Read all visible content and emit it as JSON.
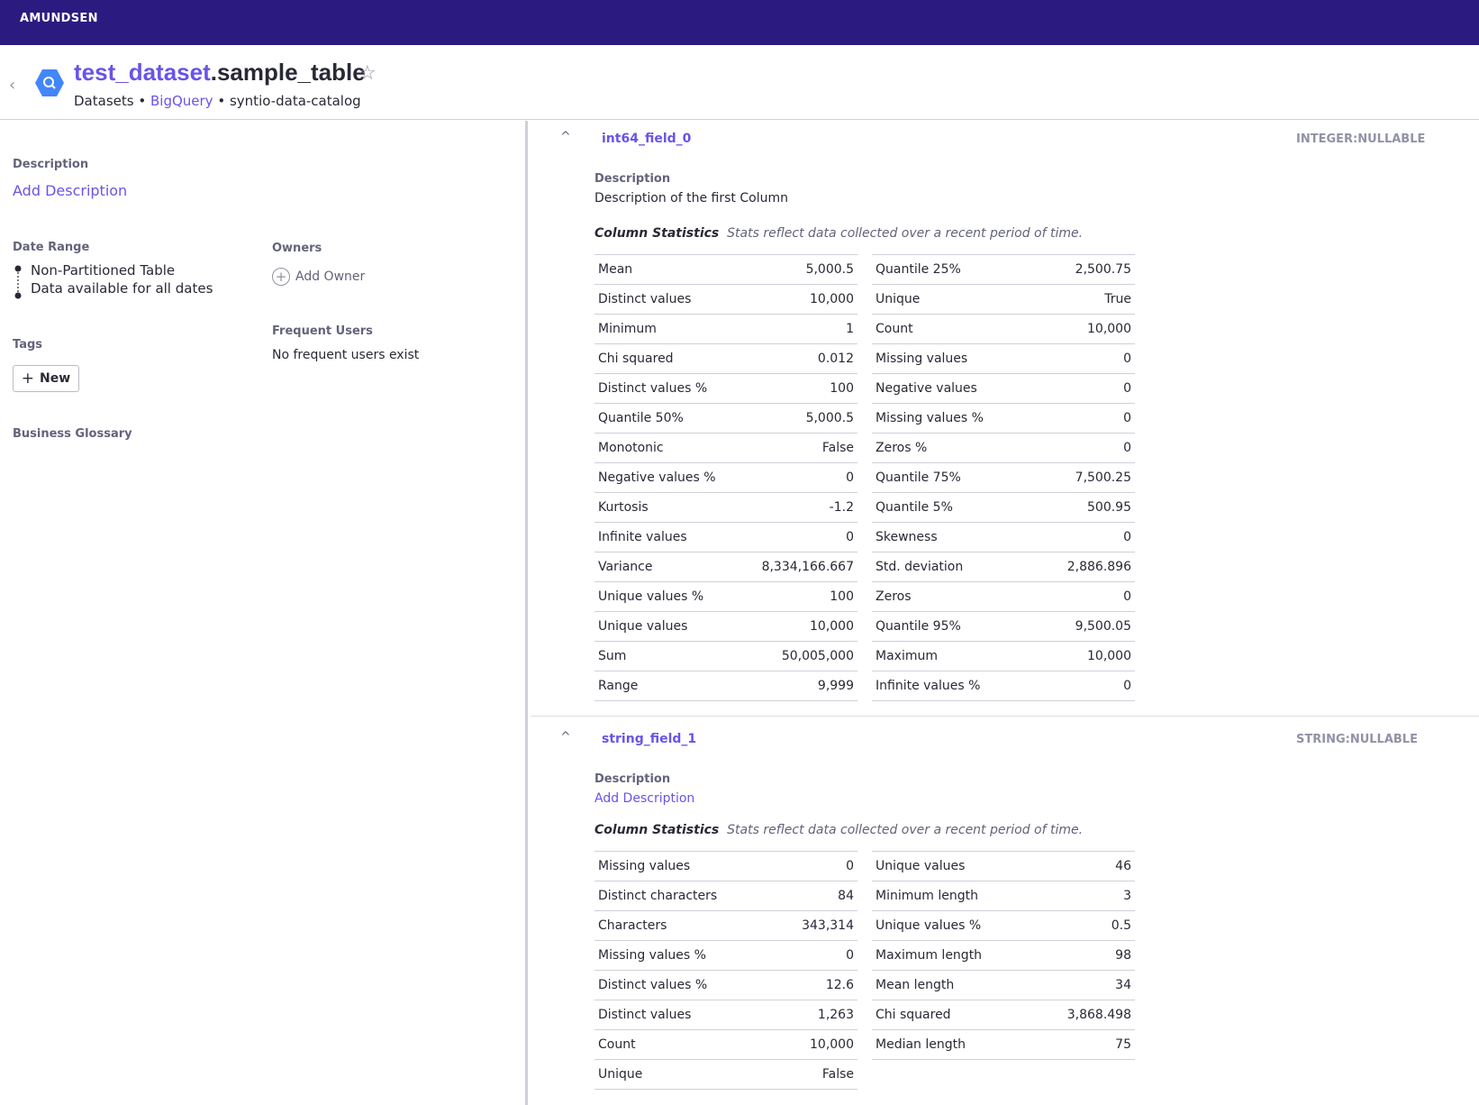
{
  "nav": {
    "brand": "AMUNDSEN"
  },
  "header": {
    "schema": "test_dataset",
    "table": ".sample_table",
    "breadcrumb_type": "Datasets",
    "sep1": "•",
    "breadcrumb_db": "BigQuery",
    "sep2": "•",
    "breadcrumb_cluster": "syntio-data-catalog",
    "icons": {
      "back": "chevron-left-icon",
      "db": "bigquery-icon",
      "bookmark": "star-icon"
    }
  },
  "left": {
    "description_label": "Description",
    "add_description": "Add Description",
    "date_range_label": "Date Range",
    "date_range_line1": "Non-Partitioned Table",
    "date_range_line2": "Data available for all dates",
    "tags_label": "Tags",
    "new_tag_icon": "+",
    "new_tag": "New",
    "glossary_label": "Business Glossary",
    "owners_label": "Owners",
    "add_owner_icon": "+",
    "add_owner": "Add Owner",
    "frequent_users_label": "Frequent Users",
    "frequent_users_empty": "No frequent users exist"
  },
  "columns": [
    {
      "name": "int64_field_0",
      "type": "INTEGER:NULLABLE",
      "chevron": "^",
      "description_label": "Description",
      "description": "Description of the first Column",
      "stats_title": "Column Statistics",
      "stats_note": "Stats reflect data collected over a recent period of time.",
      "stats_left": [
        {
          "label": "Mean",
          "value": "5,000.5"
        },
        {
          "label": "Distinct values",
          "value": "10,000"
        },
        {
          "label": "Minimum",
          "value": "1"
        },
        {
          "label": "Chi squared",
          "value": "0.012"
        },
        {
          "label": "Distinct values %",
          "value": "100"
        },
        {
          "label": "Quantile 50%",
          "value": "5,000.5"
        },
        {
          "label": "Monotonic",
          "value": "False"
        },
        {
          "label": "Negative values %",
          "value": "0"
        },
        {
          "label": "Kurtosis",
          "value": "-1.2"
        },
        {
          "label": "Infinite values",
          "value": "0"
        },
        {
          "label": "Variance",
          "value": "8,334,166.667"
        },
        {
          "label": "Unique values %",
          "value": "100"
        },
        {
          "label": "Unique values",
          "value": "10,000"
        },
        {
          "label": "Sum",
          "value": "50,005,000"
        },
        {
          "label": "Range",
          "value": "9,999"
        }
      ],
      "stats_right": [
        {
          "label": "Quantile 25%",
          "value": "2,500.75"
        },
        {
          "label": "Unique",
          "value": "True"
        },
        {
          "label": "Count",
          "value": "10,000"
        },
        {
          "label": "Missing values",
          "value": "0"
        },
        {
          "label": "Negative values",
          "value": "0"
        },
        {
          "label": "Missing values %",
          "value": "0"
        },
        {
          "label": "Zeros %",
          "value": "0"
        },
        {
          "label": "Quantile 75%",
          "value": "7,500.25"
        },
        {
          "label": "Quantile 5%",
          "value": "500.95"
        },
        {
          "label": "Skewness",
          "value": "0"
        },
        {
          "label": "Std. deviation",
          "value": "2,886.896"
        },
        {
          "label": "Zeros",
          "value": "0"
        },
        {
          "label": "Quantile 95%",
          "value": "9,500.05"
        },
        {
          "label": "Maximum",
          "value": "10,000"
        },
        {
          "label": "Infinite values %",
          "value": "0"
        }
      ]
    },
    {
      "name": "string_field_1",
      "type": "STRING:NULLABLE",
      "chevron": "^",
      "description_label": "Description",
      "add_description": "Add Description",
      "stats_title": "Column Statistics",
      "stats_note": "Stats reflect data collected over a recent period of time.",
      "stats_left": [
        {
          "label": "Missing values",
          "value": "0"
        },
        {
          "label": "Distinct characters",
          "value": "84"
        },
        {
          "label": "Characters",
          "value": "343,314"
        },
        {
          "label": "Missing values %",
          "value": "0"
        },
        {
          "label": "Distinct values %",
          "value": "12.6"
        },
        {
          "label": "Distinct values",
          "value": "1,263"
        },
        {
          "label": "Count",
          "value": "10,000"
        },
        {
          "label": "Unique",
          "value": "False"
        }
      ],
      "stats_right": [
        {
          "label": "Unique values",
          "value": "46"
        },
        {
          "label": "Minimum length",
          "value": "3"
        },
        {
          "label": "Unique values %",
          "value": "0.5"
        },
        {
          "label": "Maximum length",
          "value": "98"
        },
        {
          "label": "Mean length",
          "value": "34"
        },
        {
          "label": "Chi squared",
          "value": "3,868.498"
        },
        {
          "label": "Median length",
          "value": "75"
        }
      ]
    }
  ]
}
